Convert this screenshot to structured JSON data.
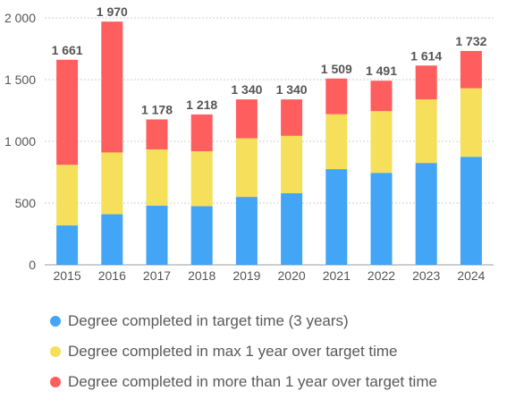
{
  "chart_data": {
    "type": "bar",
    "stacked": true,
    "categories": [
      "2015",
      "2016",
      "2017",
      "2018",
      "2019",
      "2020",
      "2021",
      "2022",
      "2023",
      "2024"
    ],
    "series": [
      {
        "name": "Degree completed in target time (3 years)",
        "color": "#42a5f5",
        "values": [
          320,
          410,
          480,
          475,
          550,
          580,
          775,
          745,
          825,
          875
        ]
      },
      {
        "name": "Degree completed in max 1 year over target time",
        "color": "#f5df5b",
        "values": [
          490,
          500,
          455,
          445,
          475,
          465,
          445,
          500,
          515,
          555
        ]
      },
      {
        "name": "Degree completed in more than 1 year over target time",
        "color": "#ff5e5e",
        "values": [
          851,
          1060,
          243,
          298,
          315,
          295,
          289,
          246,
          274,
          302
        ]
      }
    ],
    "totals": [
      "1 661",
      "1 970",
      "1 178",
      "1 218",
      "1 340",
      "1 340",
      "1 509",
      "1 491",
      "1 614",
      "1 732"
    ],
    "y_ticks": [
      "0",
      "500",
      "1 000",
      "1 500",
      "2 000"
    ],
    "ylim": [
      0,
      2000
    ],
    "grid": true,
    "legend_position": "bottom"
  }
}
